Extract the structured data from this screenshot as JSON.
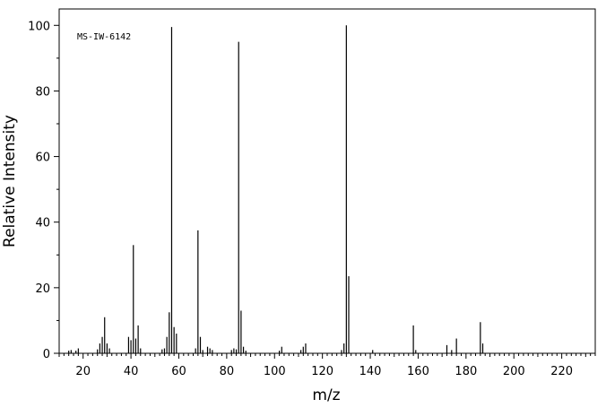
{
  "chart_data": {
    "type": "bar",
    "annotation": "MS-IW-6142",
    "xlabel": "m/z",
    "ylabel": "Relative Intensity",
    "xlim": [
      10,
      234
    ],
    "ylim": [
      0,
      105
    ],
    "x_ticks": [
      20,
      40,
      60,
      80,
      100,
      120,
      140,
      160,
      180,
      200,
      220
    ],
    "y_ticks": [
      0,
      20,
      40,
      60,
      80,
      100
    ],
    "grid": false,
    "series": [
      {
        "x": [
          14,
          15,
          17,
          18,
          26,
          27,
          28,
          29,
          30,
          31,
          39,
          40,
          41,
          42,
          43,
          44,
          53,
          54,
          55,
          56,
          57,
          58,
          59,
          67,
          68,
          69,
          70,
          72,
          73,
          74,
          82,
          83,
          84,
          85,
          86,
          87,
          88,
          102,
          103,
          111,
          112,
          113,
          128,
          129,
          130,
          131,
          141,
          158,
          159,
          172,
          174,
          176,
          186,
          187
        ],
        "values": [
          0.8,
          1.0,
          0.8,
          1.5,
          1.2,
          3.0,
          5.0,
          11.0,
          3.0,
          1.5,
          5.0,
          4.0,
          33.0,
          4.5,
          8.5,
          1.5,
          1.2,
          1.5,
          5.0,
          12.5,
          99.5,
          8.0,
          6.0,
          1.5,
          37.5,
          5.0,
          1.0,
          2.0,
          1.5,
          1.0,
          1.0,
          1.5,
          1.2,
          95.0,
          13.0,
          2.0,
          0.8,
          0.8,
          2.0,
          1.0,
          2.0,
          3.0,
          1.0,
          3.0,
          100.0,
          23.5,
          1.0,
          8.5,
          1.0,
          2.5,
          1.0,
          4.5,
          9.5,
          3.0
        ]
      }
    ]
  }
}
